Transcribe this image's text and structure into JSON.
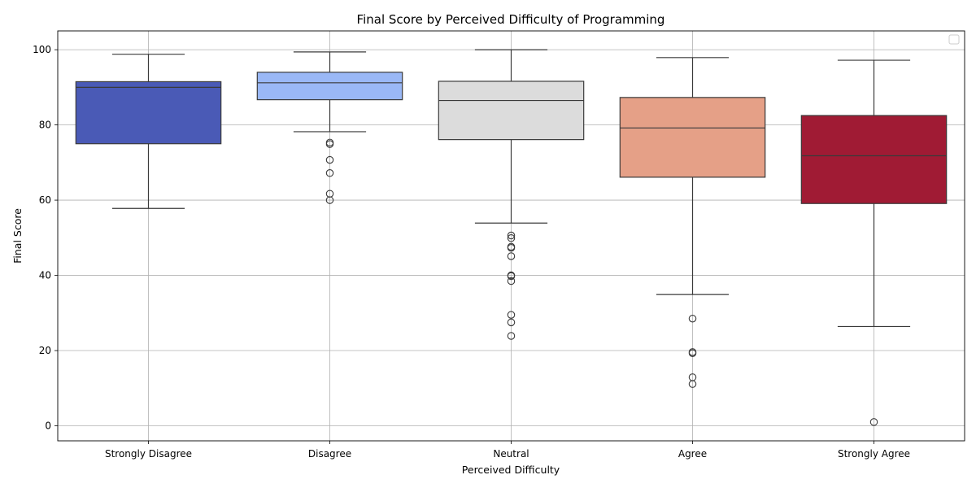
{
  "chart_data": {
    "type": "box",
    "title": "Final Score by Perceived Difficulty of Programming",
    "xlabel": "Perceived Difficulty",
    "ylabel": "Final Score",
    "ylim": [
      -4,
      105
    ],
    "yticks": [
      0,
      20,
      40,
      60,
      80,
      100
    ],
    "grid": true,
    "legend": "top-right (empty)",
    "categories": [
      "Strongly Disagree",
      "Disagree",
      "Neutral",
      "Agree",
      "Strongly Agree"
    ],
    "colors": [
      "#4a5ab6",
      "#9ab8f6",
      "#dcdcdc",
      "#e5a087",
      "#a01b34"
    ],
    "boxes": [
      {
        "category": "Strongly Disagree",
        "whisker_low": 57.8,
        "q1": 75.0,
        "median": 90.0,
        "q3": 91.5,
        "whisker_high": 98.8,
        "outliers": []
      },
      {
        "category": "Disagree",
        "whisker_low": 78.2,
        "q1": 86.7,
        "median": 91.2,
        "q3": 94.0,
        "whisker_high": 99.4,
        "outliers": [
          75.3,
          74.9,
          70.7,
          67.2,
          61.7,
          60.0
        ]
      },
      {
        "category": "Neutral",
        "whisker_low": 53.9,
        "q1": 76.1,
        "median": 86.5,
        "q3": 91.6,
        "whisker_high": 100.0,
        "outliers": [
          50.6,
          49.9,
          47.6,
          47.3,
          45.1,
          40.0,
          39.8,
          38.5,
          29.5,
          27.5,
          23.9
        ]
      },
      {
        "category": "Agree",
        "whisker_low": 34.9,
        "q1": 66.1,
        "median": 79.2,
        "q3": 87.3,
        "whisker_high": 97.9,
        "outliers": [
          28.5,
          19.6,
          19.3,
          12.9,
          11.1
        ]
      },
      {
        "category": "Strongly Agree",
        "whisker_low": 26.4,
        "q1": 59.1,
        "median": 71.8,
        "q3": 82.5,
        "whisker_high": 97.2,
        "outliers": [
          1.0
        ]
      }
    ]
  }
}
